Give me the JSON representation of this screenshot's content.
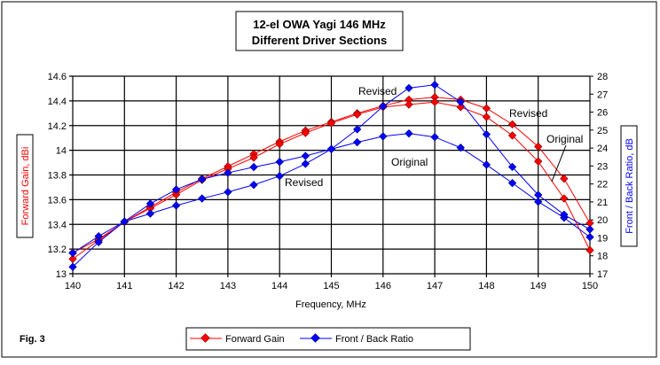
{
  "chart_data": {
    "type": "line",
    "title": [
      "12-el OWA Yagi 146 MHz",
      "Different Driver Sections"
    ],
    "xlabel": "Frequency, MHz",
    "ylabel_left": "Forward Gain, dBi",
    "ylabel_right": "Front / Back Ratio, dB",
    "xlim": [
      140,
      150
    ],
    "ylim_left": [
      13,
      14.6
    ],
    "ylim_right": [
      17,
      28
    ],
    "x_ticks": [
      "140",
      "141",
      "142",
      "143",
      "144",
      "145",
      "146",
      "147",
      "148",
      "149",
      "150"
    ],
    "y_ticks_left": [
      "13",
      "13.2",
      "13.4",
      "13.6",
      "13.8",
      "14",
      "14.2",
      "14.4",
      "14.6"
    ],
    "y_ticks_right": [
      "17",
      "18",
      "19",
      "20",
      "21",
      "22",
      "23",
      "24",
      "25",
      "26",
      "27",
      "28"
    ],
    "grid": true,
    "x": [
      140,
      140.5,
      141,
      141.5,
      142,
      142.5,
      143,
      143.5,
      144,
      144.5,
      145,
      145.5,
      146,
      146.5,
      147,
      147.5,
      148,
      148.5,
      149,
      149.5,
      150
    ],
    "series": [
      {
        "name": "Forward Gain - Revised",
        "axis": "left",
        "color": "#ff0000",
        "values": [
          13.17,
          13.28,
          13.42,
          13.54,
          13.66,
          13.77,
          13.87,
          13.97,
          14.07,
          14.16,
          14.23,
          14.3,
          14.36,
          14.41,
          14.43,
          14.41,
          14.34,
          14.21,
          14.03,
          13.77,
          13.41
        ]
      },
      {
        "name": "Forward Gain - Original",
        "axis": "left",
        "color": "#ff0000",
        "values": [
          13.12,
          13.27,
          13.42,
          13.53,
          13.64,
          13.76,
          13.85,
          13.94,
          14.05,
          14.14,
          14.22,
          14.29,
          14.35,
          14.37,
          14.39,
          14.35,
          14.27,
          14.12,
          13.91,
          13.61,
          13.19
        ]
      },
      {
        "name": "Front / Back Ratio - Original",
        "axis": "right",
        "color": "#0000ff",
        "values": [
          18.15,
          19.09,
          19.91,
          20.9,
          21.69,
          22.26,
          22.62,
          22.94,
          23.23,
          23.56,
          23.94,
          24.32,
          24.65,
          24.81,
          24.61,
          24.02,
          23.07,
          22.05,
          21.01,
          20.12,
          19.04
        ]
      },
      {
        "name": "Front / Back Ratio - Revised",
        "axis": "right",
        "color": "#0000ff",
        "values": [
          17.38,
          18.76,
          19.91,
          20.35,
          20.8,
          21.19,
          21.55,
          21.95,
          22.44,
          23.12,
          23.94,
          25.04,
          26.32,
          27.34,
          27.52,
          26.57,
          24.76,
          22.95,
          21.39,
          20.29,
          19.47
        ]
      }
    ],
    "annotations": [
      "Revised",
      "Revised",
      "Original",
      "Original",
      "Revised"
    ],
    "legend": [
      "Forward Gain",
      "Front / Back Ratio"
    ],
    "legend_placement": "bottom"
  },
  "fig_label": "Fig. 3"
}
